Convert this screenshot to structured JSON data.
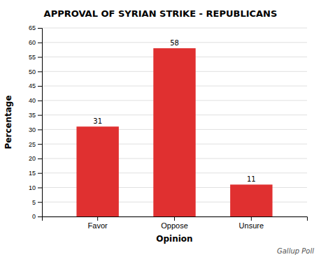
{
  "chart_data": {
    "type": "bar",
    "title": "APPROVAL OF SYRIAN STRIKE - REPUBLICANS",
    "categories": [
      "Favor",
      "Oppose",
      "Unsure"
    ],
    "values": [
      31,
      58,
      11
    ],
    "color": "#e03030",
    "xlabel": "Opinion",
    "ylabel": "Percentage",
    "ylim": [
      0,
      65
    ],
    "yticks": [
      0,
      5,
      10,
      15,
      20,
      25,
      30,
      35,
      40,
      45,
      50,
      55,
      60,
      65
    ],
    "grid": true,
    "data_labels": true,
    "annotations": [
      "Gallup Poll"
    ]
  }
}
